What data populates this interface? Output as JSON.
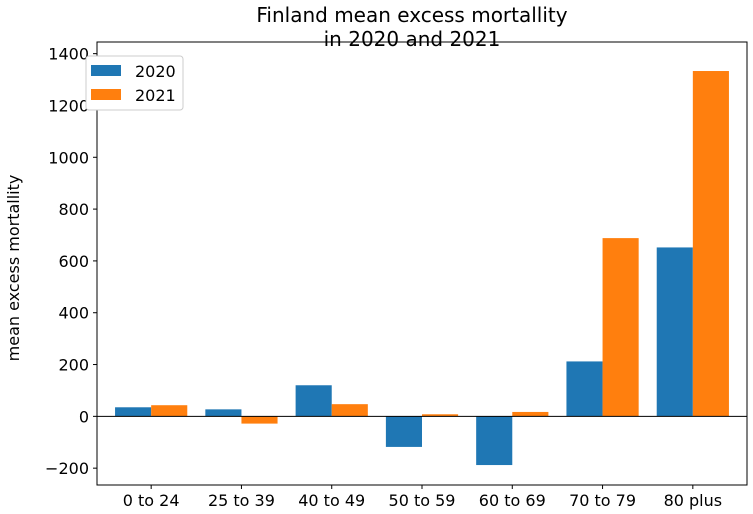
{
  "chart_data": {
    "type": "bar",
    "title": "Finland mean excess mortallity\nin 2020 and 2021",
    "title_lines": [
      "Finland mean excess mortallity",
      "in 2020 and 2021"
    ],
    "xlabel": "",
    "ylabel": "mean excess mortallity",
    "categories": [
      "0 to 24",
      "25 to 39",
      "40 to 49",
      "50 to 59",
      "60 to 69",
      "70 to 79",
      "80 plus"
    ],
    "series": [
      {
        "name": "2020",
        "color": "#1f77b4",
        "values": [
          35,
          27,
          120,
          -118,
          -188,
          212,
          652
        ]
      },
      {
        "name": "2021",
        "color": "#ff7f0e",
        "values": [
          43,
          -28,
          47,
          8,
          17,
          688,
          1333
        ]
      }
    ],
    "ylim": [
      -265,
      1445
    ],
    "yticks": [
      -200,
      0,
      200,
      400,
      600,
      800,
      1000,
      1200,
      1400
    ],
    "ytick_labels": [
      "−200",
      "0",
      "200",
      "400",
      "600",
      "800",
      "1000",
      "1200",
      "1400"
    ],
    "zero_line": true,
    "grid": false,
    "legend_position": "top-left"
  }
}
